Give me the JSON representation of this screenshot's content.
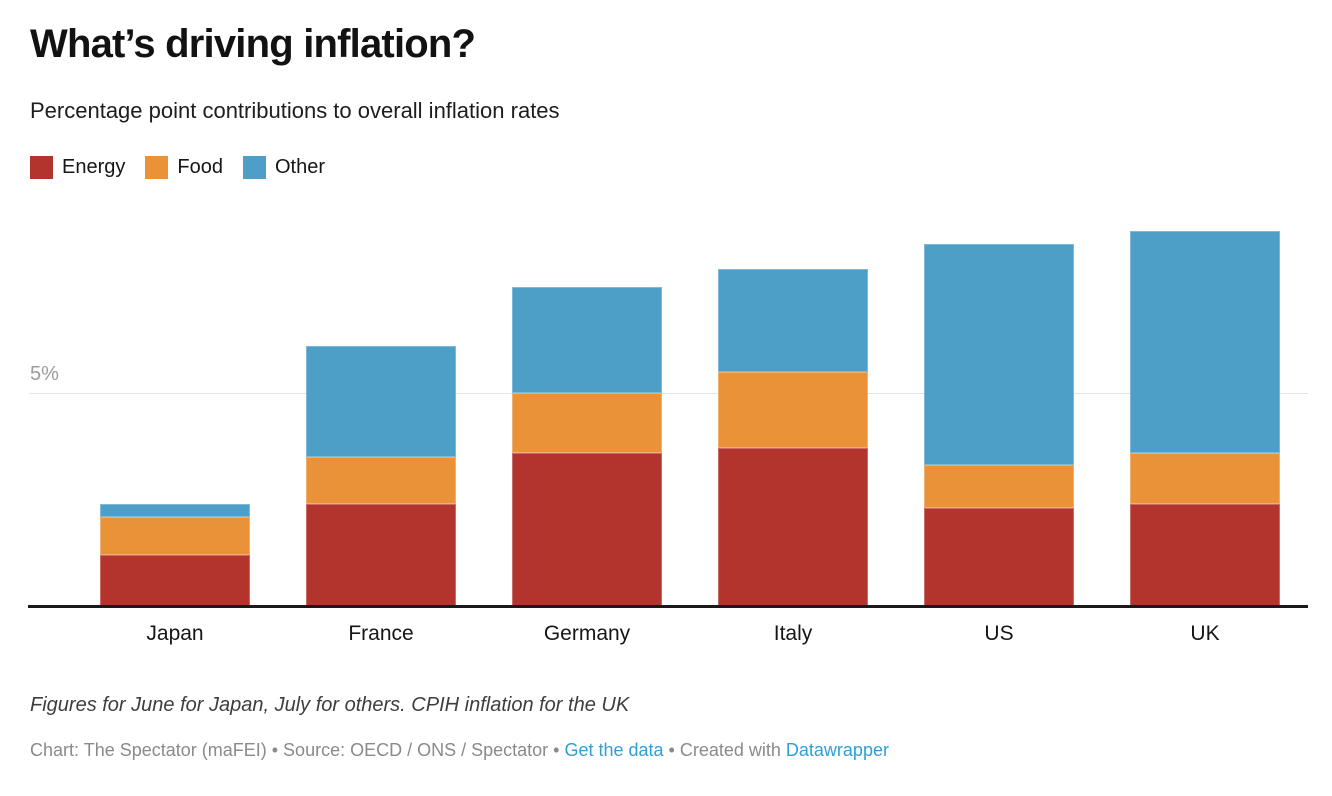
{
  "header": {
    "title": "What’s driving inflation?",
    "subtitle": "Percentage point contributions to overall inflation rates"
  },
  "chart_data": {
    "type": "bar",
    "stacked": true,
    "title": "What’s driving inflation?",
    "subtitle": "Percentage point contributions to overall inflation rates",
    "categories": [
      "Japan",
      "France",
      "Germany",
      "Italy",
      "US",
      "UK"
    ],
    "series": [
      {
        "name": "Energy",
        "color": "#b2342c",
        "values": [
          1.2,
          2.4,
          3.6,
          3.7,
          2.3,
          2.4
        ]
      },
      {
        "name": "Food",
        "color": "#ea9238",
        "values": [
          0.9,
          1.1,
          1.4,
          1.8,
          1.0,
          1.2
        ]
      },
      {
        "name": "Other",
        "color": "#4d9fc8",
        "values": [
          0.3,
          2.6,
          2.5,
          2.4,
          5.2,
          5.2
        ]
      }
    ],
    "totals": [
      2.4,
      6.1,
      7.5,
      7.9,
      8.5,
      8.8
    ],
    "xlabel": "",
    "ylabel": "",
    "ylim": [
      0,
      9.4
    ],
    "y_axis": {
      "unit": "%",
      "gridlines": [
        {
          "value": 5,
          "label": "5%"
        }
      ]
    },
    "legend_position": "top-left",
    "notes": "Figures for June for Japan, July for others. CPIH inflation for the UK"
  },
  "footnote": "Figures for June for Japan, July for others. CPIH inflation for the UK",
  "byline": {
    "prefix": "Chart: The Spectator (maFEI) • Source: OECD / ONS / Spectator • ",
    "link1": "Get the data",
    "separator": " • Created with ",
    "link2": "Datawrapper"
  },
  "colors": {
    "link": "#2f9fd6",
    "axis": "#1a1a1a",
    "gridline": "#e3e3e3",
    "tick_label": "#9c9c9c"
  }
}
